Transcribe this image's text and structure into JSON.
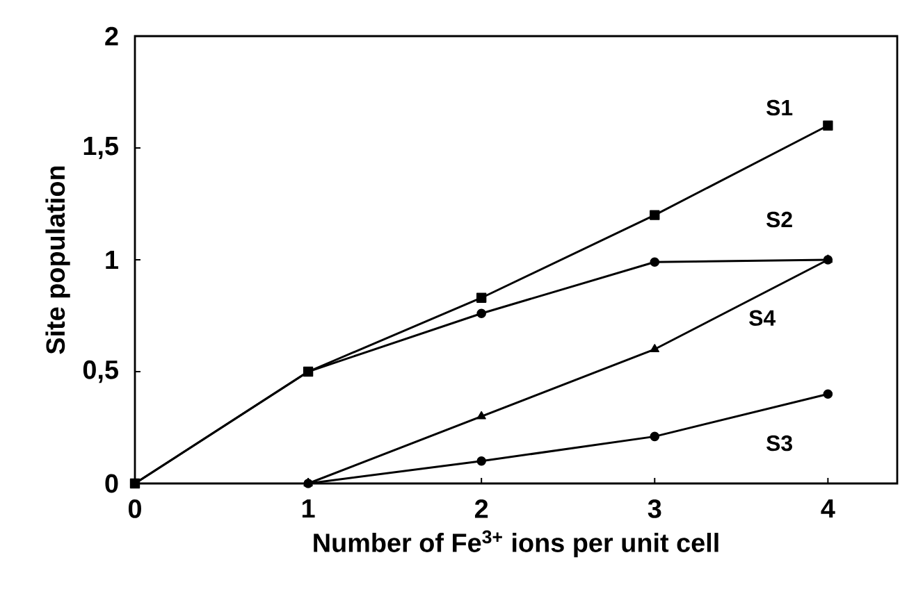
{
  "chart_data": {
    "type": "line",
    "xlabel": "Number of Fe$^{3+}$ ions per unit cell",
    "ylabel": "Site population",
    "x": [
      0,
      1,
      2,
      3,
      4
    ],
    "series": [
      {
        "name": "S1",
        "color": "#000000",
        "marker": "square",
        "values": [
          0,
          0.5,
          0.83,
          1.2,
          1.6
        ]
      },
      {
        "name": "S2",
        "color": "#000000",
        "marker": "circle",
        "values": [
          0,
          0.5,
          0.76,
          0.99,
          1.0
        ]
      },
      {
        "name": "S4",
        "color": "#000000",
        "marker": "triangle",
        "values": [
          null,
          0,
          0.3,
          0.6,
          1.0
        ]
      },
      {
        "name": "S3",
        "color": "#000000",
        "marker": "circle",
        "values": [
          null,
          0,
          0.1,
          0.21,
          0.4
        ]
      }
    ],
    "xlim": [
      0,
      4.4
    ],
    "ylim": [
      0,
      2
    ],
    "xticks": [
      0,
      1,
      2,
      3,
      4
    ],
    "yticks": [
      0,
      {
        "value": 0.5,
        "label": "0,5"
      },
      1,
      {
        "value": 1.5,
        "label": "1,5"
      },
      2
    ],
    "grid": false,
    "line_style": "solid"
  }
}
